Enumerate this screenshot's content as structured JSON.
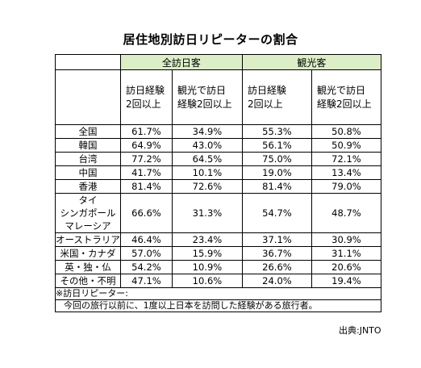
{
  "title": "居住地別訪日リピーターの割合",
  "categories": [
    "全訪日客",
    "観光客"
  ],
  "subheaders": [
    [
      "訪日経験",
      "2回以上"
    ],
    [
      "観光で訪日",
      "経験2回以上"
    ],
    [
      "訪日経験",
      "2回以上"
    ],
    [
      "観光で訪日",
      "経験2回以上"
    ]
  ],
  "rows": [
    {
      "label": [
        "全国"
      ],
      "values": [
        "61.7%",
        "34.9%",
        "55.3%",
        "50.8%"
      ]
    },
    {
      "label": [
        "韓国"
      ],
      "values": [
        "64.9%",
        "43.0%",
        "56.1%",
        "50.9%"
      ]
    },
    {
      "label": [
        "台湾"
      ],
      "values": [
        "77.2%",
        "64.5%",
        "75.0%",
        "72.1%"
      ]
    },
    {
      "label": [
        "中国"
      ],
      "values": [
        "41.7%",
        "10.1%",
        "19.0%",
        "13.4%"
      ]
    },
    {
      "label": [
        "香港"
      ],
      "values": [
        "81.4%",
        "72.6%",
        "81.4%",
        "79.0%"
      ]
    },
    {
      "label": [
        "タイ",
        "シンガポール",
        "マレーシア"
      ],
      "values": [
        "66.6%",
        "31.3%",
        "54.7%",
        "48.7%"
      ]
    },
    {
      "label": [
        "オーストラリア"
      ],
      "values": [
        "46.4%",
        "23.4%",
        "37.1%",
        "30.9%"
      ]
    },
    {
      "label": [
        "米国・カナダ"
      ],
      "values": [
        "57.0%",
        "15.9%",
        "36.7%",
        "31.1%"
      ]
    },
    {
      "label": [
        "英・独・仏"
      ],
      "values": [
        "54.2%",
        "10.9%",
        "26.6%",
        "20.6%"
      ]
    },
    {
      "label": [
        "その他・不明"
      ],
      "values": [
        "47.1%",
        "10.6%",
        "24.0%",
        "19.4%"
      ]
    }
  ],
  "note": {
    "heading": "※訪日リピーター:",
    "text": "今回の旅行以前に、1度以上日本を訪問した経験がある旅行者。"
  },
  "source": "出典:JNTO",
  "colors": {
    "header_fill": "#dbeec8"
  }
}
